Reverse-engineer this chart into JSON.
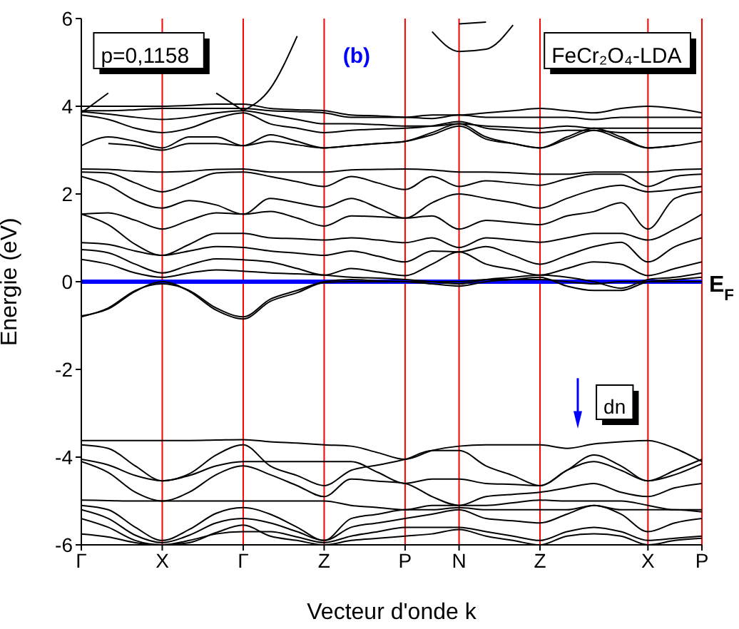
{
  "chart_data": {
    "type": "line",
    "xlabel": "Vecteur d'onde k",
    "ylabel": "Energie (eV)",
    "annotations": [
      "p=0,1158",
      "(b)",
      "FeCr₂O₄-LDA",
      "dn"
    ],
    "categories": [
      "Γ",
      null,
      null,
      "X",
      null,
      null,
      "Γ",
      null,
      null,
      "Z",
      null,
      null,
      "P",
      null,
      "N",
      null,
      null,
      "Z",
      null,
      null,
      null,
      "X",
      null,
      "P"
    ],
    "ylim": [
      -6,
      6
    ],
    "yticks": [
      -6,
      -4,
      -2,
      0,
      2,
      4,
      6
    ],
    "grid": "x",
    "marker": "none",
    "line_style": "solid",
    "ref_lines": [
      {
        "axis": "y",
        "value": 0,
        "label": "E$_{F}$",
        "color": "#0000ff"
      }
    ],
    "series": [
      {
        "color": "#000000",
        "values": [
          3.85,
          4.3,
          null,
          null,
          null,
          null,
          null,
          null,
          null,
          null,
          null,
          null,
          null,
          null,
          null,
          null,
          null,
          null,
          null,
          null,
          null,
          null,
          null,
          null
        ]
      },
      {
        "color": "#000000",
        "values": [
          null,
          null,
          null,
          null,
          null,
          4.3,
          3.9,
          null,
          null,
          null,
          null,
          null,
          null,
          null,
          null,
          null,
          null,
          null,
          null,
          null,
          null,
          null,
          null,
          null
        ]
      },
      {
        "color": "#000000",
        "values": [
          null,
          null,
          null,
          null,
          null,
          null,
          3.9,
          4.4,
          5.6,
          null,
          null,
          null,
          null,
          null,
          null,
          null,
          null,
          null,
          null,
          null,
          null,
          null,
          null,
          null
        ]
      },
      {
        "color": "#000000",
        "values": [
          null,
          null,
          null,
          null,
          null,
          null,
          null,
          null,
          null,
          null,
          null,
          null,
          null,
          5.7,
          5.25,
          5.3,
          5.85,
          null,
          null,
          null,
          null,
          null,
          null,
          null
        ]
      },
      {
        "color": "#000000",
        "values": [
          null,
          null,
          null,
          null,
          null,
          null,
          null,
          null,
          null,
          null,
          null,
          null,
          null,
          null,
          5.88,
          5.92,
          null,
          null,
          null,
          null,
          null,
          null,
          null,
          null
        ]
      },
      {
        "color": "#000000",
        "values": [
          4.0,
          4.0,
          4.0,
          4.0,
          4.02,
          4.05,
          4.05,
          3.95,
          3.92,
          3.9,
          3.8,
          3.78,
          3.75,
          3.8,
          3.8,
          3.85,
          3.9,
          3.95,
          3.9,
          3.85,
          3.95,
          4.0,
          3.95,
          3.85
        ]
      },
      {
        "color": "#000000",
        "values": [
          3.9,
          3.9,
          3.92,
          3.95,
          3.95,
          3.95,
          3.95,
          3.9,
          3.88,
          3.85,
          3.75,
          3.75,
          3.75,
          3.72,
          3.8,
          3.75,
          3.75,
          3.75,
          3.75,
          3.7,
          3.75,
          3.75,
          3.75,
          3.75
        ]
      },
      {
        "color": "#000000",
        "values": [
          3.88,
          3.82,
          3.75,
          3.7,
          3.75,
          3.85,
          3.9,
          3.8,
          3.7,
          3.6,
          3.6,
          3.58,
          3.55,
          3.55,
          3.6,
          3.55,
          3.52,
          3.5,
          3.55,
          3.5,
          3.5,
          3.5,
          3.5,
          3.5
        ]
      },
      {
        "color": "#000000",
        "values": [
          3.8,
          3.7,
          3.5,
          3.4,
          3.5,
          3.72,
          3.85,
          3.6,
          3.5,
          3.4,
          3.45,
          3.48,
          3.5,
          3.55,
          3.65,
          3.5,
          3.45,
          3.4,
          3.45,
          3.45,
          3.4,
          3.4,
          3.4,
          3.4
        ]
      },
      {
        "color": "#000000",
        "values": [
          3.1,
          3.3,
          3.2,
          3.05,
          3.3,
          3.3,
          3.1,
          3.35,
          3.2,
          3.05,
          3.1,
          3.15,
          3.2,
          3.4,
          3.6,
          3.3,
          3.15,
          3.05,
          3.3,
          3.5,
          3.3,
          3.05,
          3.1,
          3.2
        ]
      },
      {
        "color": "#000000",
        "values": [
          null,
          3.15,
          3.1,
          3.0,
          3.15,
          3.15,
          3.1,
          3.2,
          3.12,
          3.05,
          3.1,
          3.15,
          3.2,
          3.35,
          3.55,
          3.25,
          3.15,
          3.05,
          3.25,
          3.45,
          3.25,
          3.05,
          3.1,
          null
        ]
      },
      {
        "color": "#000000",
        "values": [
          2.57,
          2.56,
          2.52,
          2.5,
          2.52,
          2.56,
          2.57,
          2.5,
          2.5,
          2.5,
          2.55,
          2.56,
          2.57,
          2.55,
          2.5,
          2.5,
          2.48,
          2.45,
          2.45,
          2.5,
          2.5,
          2.5,
          2.55,
          2.57
        ]
      },
      {
        "color": "#000000",
        "values": [
          2.5,
          2.48,
          2.25,
          2.05,
          2.25,
          2.48,
          2.5,
          2.4,
          2.28,
          2.17,
          2.4,
          2.25,
          2.1,
          2.4,
          2.17,
          2.3,
          2.25,
          2.2,
          2.35,
          2.45,
          2.45,
          2.17,
          2.4,
          2.45
        ]
      },
      {
        "color": "#000000",
        "values": [
          2.4,
          2.2,
          1.85,
          1.68,
          1.85,
          1.75,
          1.54,
          1.9,
          1.8,
          1.7,
          1.9,
          1.68,
          1.45,
          1.8,
          2.0,
          1.9,
          1.8,
          1.68,
          1.9,
          2.1,
          2.2,
          2.05,
          2.1,
          2.17
        ]
      },
      {
        "color": "#000000",
        "values": [
          1.54,
          1.57,
          1.4,
          1.2,
          1.4,
          1.57,
          1.54,
          1.6,
          1.45,
          1.27,
          1.5,
          1.48,
          1.45,
          1.5,
          1.2,
          1.4,
          1.35,
          1.3,
          1.5,
          1.6,
          1.8,
          1.2,
          1.9,
          2.05
        ]
      },
      {
        "color": "#000000",
        "values": [
          1.54,
          1.3,
          0.85,
          0.6,
          0.85,
          1.1,
          1.1,
          1.0,
          0.98,
          0.95,
          1.0,
          0.95,
          0.89,
          1.0,
          0.78,
          1.0,
          0.95,
          0.9,
          1.0,
          1.1,
          1.1,
          0.95,
          1.2,
          1.54
        ]
      },
      {
        "color": "#000000",
        "values": [
          0.89,
          0.85,
          0.7,
          0.6,
          0.7,
          0.8,
          0.78,
          0.7,
          0.65,
          0.6,
          0.7,
          0.58,
          0.45,
          0.7,
          0.68,
          0.8,
          0.6,
          0.4,
          0.6,
          0.8,
          0.9,
          0.45,
          0.8,
          1.0
        ]
      },
      {
        "color": "#000000",
        "values": [
          0.73,
          0.66,
          0.4,
          0.2,
          0.38,
          0.52,
          0.5,
          0.45,
          0.3,
          0.15,
          0.3,
          0.22,
          0.14,
          0.4,
          0.68,
          0.4,
          0.28,
          0.15,
          0.3,
          0.45,
          0.4,
          0.14,
          0.3,
          0.45
        ]
      },
      {
        "color": "#000000",
        "values": [
          0.51,
          0.4,
          0.2,
          0.1,
          0.2,
          0.27,
          0.24,
          0.2,
          0.18,
          0.15,
          0.1,
          0.08,
          0.05,
          0.0,
          -0.05,
          0.05,
          0.1,
          0.15,
          0.1,
          0.0,
          -0.15,
          0.05,
          0.1,
          0.2
        ]
      },
      {
        "color": "#000000",
        "values": [
          -0.8,
          -0.6,
          -0.2,
          -0.05,
          -0.2,
          -0.6,
          -0.8,
          -0.4,
          -0.2,
          0.0,
          0.05,
          0.02,
          0.0,
          -0.05,
          -0.1,
          0.0,
          0.05,
          0.1,
          -0.1,
          -0.2,
          -0.2,
          0.0,
          0.05,
          0.1
        ]
      },
      {
        "color": "#000000",
        "values": [
          -0.78,
          -0.62,
          -0.22,
          0.0,
          -0.22,
          -0.65,
          -0.85,
          -0.45,
          -0.25,
          -0.02,
          0.0,
          0.0,
          0.0,
          0.0,
          0.0,
          0.05,
          0.05,
          0.05,
          0.0,
          -0.05,
          0.0,
          0.0,
          0.0,
          0.0
        ]
      },
      {
        "color": "#000000",
        "values": [
          -3.62,
          -3.62,
          -3.62,
          -3.62,
          -3.62,
          -3.61,
          -3.6,
          -3.65,
          -3.68,
          -3.72,
          -3.75,
          -3.9,
          -4.05,
          -3.85,
          -3.75,
          -3.72,
          -3.72,
          -3.72,
          -3.8,
          -3.7,
          -3.65,
          -3.62,
          -3.8,
          -4.1
        ]
      },
      {
        "color": "#000000",
        "values": [
          -3.72,
          -3.8,
          -4.2,
          -4.54,
          -4.38,
          -3.95,
          -3.72,
          -4.2,
          -4.42,
          -4.65,
          -4.3,
          -4.18,
          -4.05,
          -3.85,
          -3.85,
          -4.2,
          -4.42,
          -4.65,
          -4.3,
          -3.95,
          -4.2,
          -4.54,
          -4.3,
          -4.05
        ]
      },
      {
        "color": "#000000",
        "values": [
          -4.05,
          -4.18,
          -4.42,
          -4.54,
          -4.42,
          -4.2,
          -4.1,
          -4.1,
          -4.1,
          -4.1,
          -4.1,
          -4.35,
          -4.6,
          -4.5,
          -4.5,
          -4.6,
          -4.62,
          -4.65,
          -4.3,
          -4.1,
          -4.3,
          -4.54,
          -4.4,
          -4.15
        ]
      },
      {
        "color": "#000000",
        "values": [
          -4.1,
          -4.35,
          -4.8,
          -5.0,
          -4.8,
          -4.4,
          -4.2,
          -4.4,
          -4.65,
          -4.9,
          -4.5,
          -4.55,
          -4.6,
          -4.9,
          -5.1,
          -4.9,
          -4.85,
          -4.8,
          -4.7,
          -4.6,
          -4.8,
          -4.9,
          -4.7,
          -4.6
        ]
      },
      {
        "color": "#000000",
        "values": [
          -4.98,
          -4.99,
          -5.0,
          -5.0,
          -5.0,
          -5.0,
          -5.0,
          -5.0,
          -5.0,
          -5.0,
          -5.1,
          -5.15,
          -5.2,
          -5.1,
          -5.1,
          -5.1,
          -5.04,
          -4.98,
          -5.0,
          -5.0,
          -5.0,
          -5.1,
          -5.2,
          -5.2
        ]
      },
      {
        "color": "#000000",
        "values": [
          -5.1,
          -5.2,
          -5.6,
          -5.9,
          -5.65,
          -5.28,
          -5.15,
          -5.3,
          -5.6,
          -5.9,
          -5.4,
          -5.3,
          -5.2,
          -5.2,
          -5.15,
          -5.2,
          -5.2,
          -5.2,
          -5.2,
          -5.1,
          -5.2,
          -5.2,
          -5.2,
          -5.25
        ]
      },
      {
        "color": "#000000",
        "values": [
          -5.2,
          -5.4,
          -5.78,
          -5.95,
          -5.78,
          -5.5,
          -5.4,
          -5.5,
          -5.7,
          -5.9,
          -5.6,
          -5.5,
          -5.4,
          -5.3,
          -5.2,
          -5.4,
          -5.45,
          -5.5,
          -5.3,
          -5.1,
          -5.3,
          -5.7,
          -5.5,
          -5.4
        ]
      },
      {
        "color": "#000000",
        "values": [
          -5.4,
          -5.6,
          -5.9,
          -6.0,
          -5.9,
          -5.75,
          -5.7,
          -5.7,
          -5.82,
          -5.95,
          -5.8,
          -5.7,
          -5.6,
          -5.6,
          -5.6,
          -5.7,
          -5.8,
          -5.9,
          -5.7,
          -5.6,
          -5.7,
          -5.9,
          -5.85,
          -5.8
        ]
      },
      {
        "color": "#000000",
        "values": [
          -5.75,
          -5.82,
          -5.95,
          -6.0,
          -5.95,
          -5.72,
          -5.55,
          -5.8,
          -5.9,
          -6.0,
          -5.9,
          -5.85,
          -5.8,
          -5.75,
          -5.65,
          -5.8,
          -5.9,
          -6.0,
          -5.8,
          -5.75,
          -5.8,
          -6.0,
          -5.9,
          -5.85
        ]
      }
    ]
  }
}
